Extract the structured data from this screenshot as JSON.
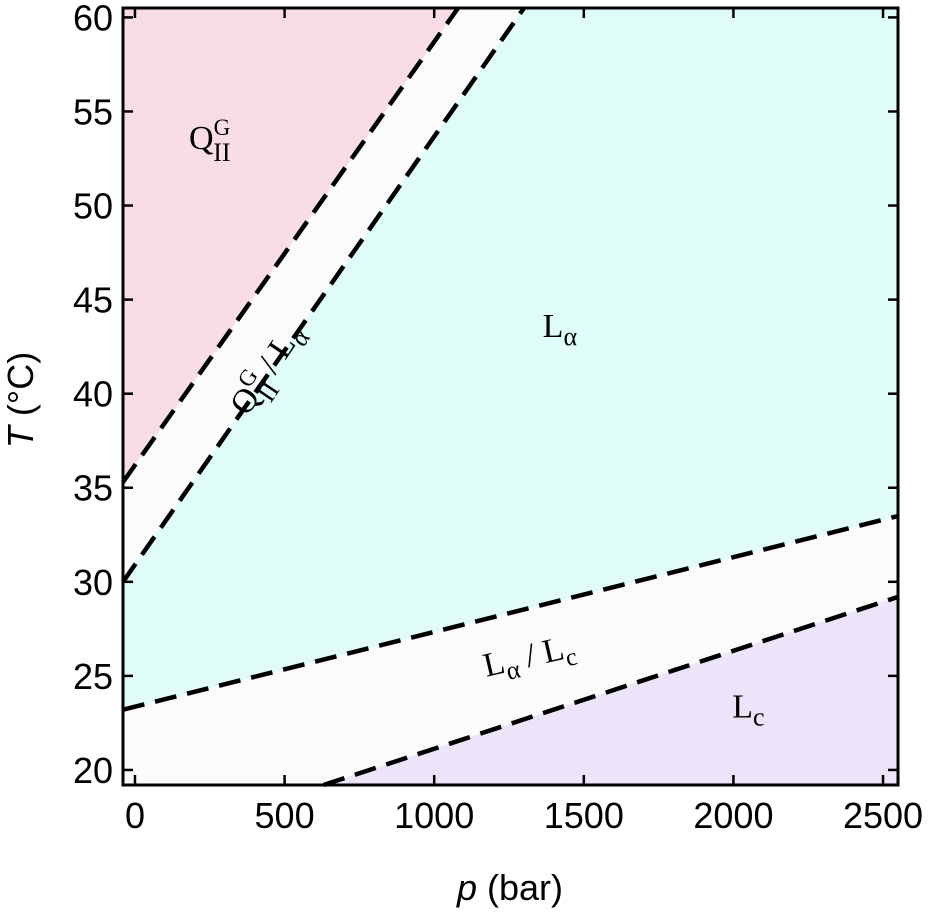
{
  "chart_data": {
    "type": "phase-diagram",
    "xlabel": {
      "var": "p",
      "unit": " (bar)"
    },
    "ylabel": {
      "var": "T",
      "unit": " (°C)"
    },
    "xlim": [
      -40,
      2550
    ],
    "ylim": [
      19.2,
      60.5
    ],
    "xticks": [
      0,
      500,
      1000,
      1500,
      2000,
      2500
    ],
    "yticks": [
      20,
      25,
      30,
      35,
      40,
      45,
      50,
      55,
      60
    ],
    "boundaries": [
      {
        "name": "QIIG upper",
        "points": [
          [
            -40,
            35.3
          ],
          [
            1080,
            60.5
          ]
        ]
      },
      {
        "name": "QIIG lower",
        "points": [
          [
            -40,
            30.0
          ],
          [
            1300,
            60.5
          ]
        ]
      },
      {
        "name": "Lc upper",
        "points": [
          [
            -40,
            23.2
          ],
          [
            2550,
            33.5
          ]
        ]
      },
      {
        "name": "Lc lower",
        "points": [
          [
            630,
            19.2
          ],
          [
            2550,
            29.2
          ]
        ]
      }
    ],
    "regions": [
      {
        "id": "qiig",
        "label": {
          "base": "Q",
          "sub": "II",
          "sup": "G"
        },
        "color": "#f9dde6",
        "at": [
          250,
          53
        ],
        "polygon": [
          [
            -40,
            35.3
          ],
          [
            1080,
            60.5
          ],
          [
            -40,
            60.5
          ]
        ]
      },
      {
        "id": "qiig-la",
        "label": {
          "base": "Q",
          "sub": "II",
          "sup": "G",
          "tail": " / L",
          "tailsub": "α"
        },
        "color": "#fbfbfb",
        "at": [
          470,
          41
        ],
        "rotate": -56
      },
      {
        "id": "la",
        "label": {
          "base": "L",
          "sub": "α"
        },
        "color": "#dffcf8",
        "at": [
          1420,
          43
        ],
        "polygon": [
          [
            -40,
            30.0
          ],
          [
            1300,
            60.5
          ],
          [
            2550,
            60.5
          ],
          [
            2550,
            33.5
          ],
          [
            -40,
            23.2
          ]
        ]
      },
      {
        "id": "la-lc",
        "label": {
          "base": "L",
          "sub": "α",
          "tail": " / L",
          "tailsub": "c"
        },
        "color": "#fbfbfb",
        "at": [
          1325,
          25.5
        ],
        "rotate": -13
      },
      {
        "id": "lc",
        "label": {
          "base": "L",
          "sub": "c"
        },
        "color": "#ece4f8",
        "at": [
          2050,
          22.8
        ],
        "polygon": [
          [
            630,
            19.2
          ],
          [
            2550,
            29.2
          ],
          [
            2550,
            19.2
          ]
        ]
      }
    ]
  }
}
